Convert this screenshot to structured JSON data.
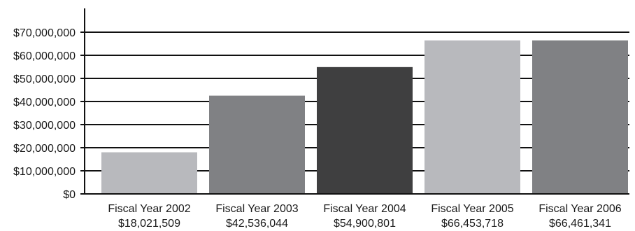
{
  "chart_data": {
    "type": "bar",
    "categories": [
      "Fiscal Year 2002",
      "Fiscal Year 2003",
      "Fiscal Year 2004",
      "Fiscal Year 2005",
      "Fiscal Year 2006"
    ],
    "values": [
      18021509,
      42536044,
      54900801,
      66453718,
      66461341
    ],
    "value_labels": [
      "$18,021,509",
      "$42,536,044",
      "$54,900,801",
      "$66,453,718",
      "$66,461,341"
    ],
    "bar_colors": [
      "#b8b9bd",
      "#808184",
      "#3f3f40",
      "#b8b9bd",
      "#808184"
    ],
    "y_ticks": [
      0,
      10000000,
      20000000,
      30000000,
      40000000,
      50000000,
      60000000,
      70000000
    ],
    "y_tick_labels": [
      "$0",
      "$10,000,000",
      "$20,000,000",
      "$30,000,000",
      "$40,000,000",
      "$50,000,000",
      "$60,000,000",
      "$70,000,000"
    ],
    "ylim": [
      0,
      80000000
    ],
    "grid": true,
    "title": "",
    "xlabel": "",
    "ylabel": ""
  }
}
